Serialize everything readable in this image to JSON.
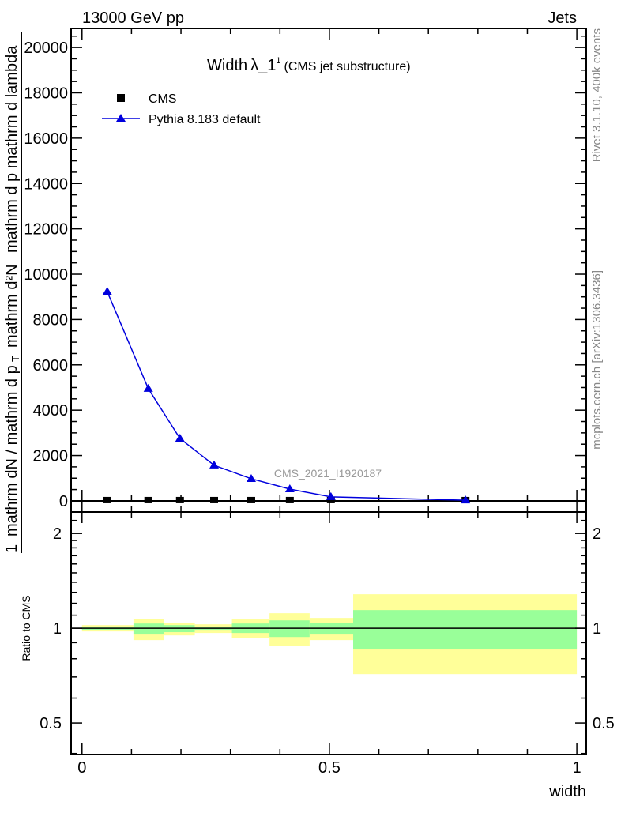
{
  "header": {
    "left": "13000 GeV pp",
    "right": "Jets"
  },
  "side_labels": {
    "rivet": "Rivet 3.1.10,  400k events",
    "mcplots": "mcplots.cern.ch [arXiv:1306.3436]"
  },
  "watermark": "CMS_2021_I1920187",
  "colors": {
    "pythia": "#0000dd",
    "cms": "#000000",
    "band_yellow": "#ffff99",
    "band_green": "#99ff99"
  },
  "chart_data": [
    {
      "type": "line",
      "title": "Width",
      "title_symbol": "λ_1",
      "title_sup": "1",
      "title_suffix": "(CMS jet substructure)",
      "ylabel_parts": {
        "num_outer": "1",
        "den_outer": "mathrm dN / mathrm d p",
        "num_inner": "mathrm d²N",
        "den_inner": "mathrm d p   mathrm d lambda",
        "sub": "T"
      },
      "xlim": [
        -0.022,
        1.019
      ],
      "ylim": [
        -490,
        20840
      ],
      "yticks": [
        0,
        2000,
        4000,
        6000,
        8000,
        10000,
        12000,
        14000,
        16000,
        18000,
        20000
      ],
      "yticklabels": [
        "0",
        "2000",
        "4000",
        "6000",
        "8000",
        "10000",
        "12000",
        "14000",
        "16000",
        "18000",
        "20000"
      ],
      "legend": {
        "placement": "top-left",
        "entries": [
          "CMS",
          "Pythia 8.183 default"
        ]
      },
      "series": [
        {
          "name": "CMS",
          "marker": "square",
          "x": [
            0.051,
            0.134,
            0.198,
            0.267,
            0.342,
            0.42,
            0.503,
            0.775
          ],
          "y": [
            0,
            0,
            0,
            0,
            0,
            0,
            0,
            0
          ]
        },
        {
          "name": "Pythia 8.183 default",
          "marker": "triangle",
          "x": [
            0.051,
            0.134,
            0.198,
            0.267,
            0.342,
            0.42,
            0.503,
            0.775
          ],
          "y": [
            9230,
            4950,
            2750,
            1570,
            975,
            520,
            175,
            30
          ],
          "yerr": [
            150,
            60,
            40,
            30,
            20,
            15,
            10,
            5
          ]
        }
      ]
    },
    {
      "type": "area",
      "ylabel": "Ratio to CMS",
      "xlabel": "width",
      "scale": "log",
      "xlim": [
        -0.022,
        1.019
      ],
      "ylim": [
        0.397,
        2.34
      ],
      "yticks": [
        0.5,
        1,
        2
      ],
      "yticklabels": [
        "0.5",
        "1",
        "2"
      ],
      "xticks": [
        0,
        0.5,
        1
      ],
      "xticklabels": [
        "0",
        "0.5",
        "1"
      ],
      "bin_edges": [
        0,
        0.104,
        0.165,
        0.228,
        0.303,
        0.379,
        0.46,
        0.548,
        1.0
      ],
      "yellow_band": {
        "hi": [
          1.023,
          1.072,
          1.041,
          1.029,
          1.066,
          1.116,
          1.078,
          1.282
        ],
        "lo": [
          0.977,
          0.917,
          0.949,
          0.966,
          0.933,
          0.881,
          0.917,
          0.715
        ]
      },
      "green_band": {
        "hi": [
          1.012,
          1.035,
          1.023,
          1.012,
          1.035,
          1.059,
          1.041,
          1.142
        ],
        "lo": [
          0.988,
          0.955,
          0.972,
          0.983,
          0.966,
          0.938,
          0.955,
          0.856
        ]
      },
      "ratio_line": 1
    }
  ]
}
